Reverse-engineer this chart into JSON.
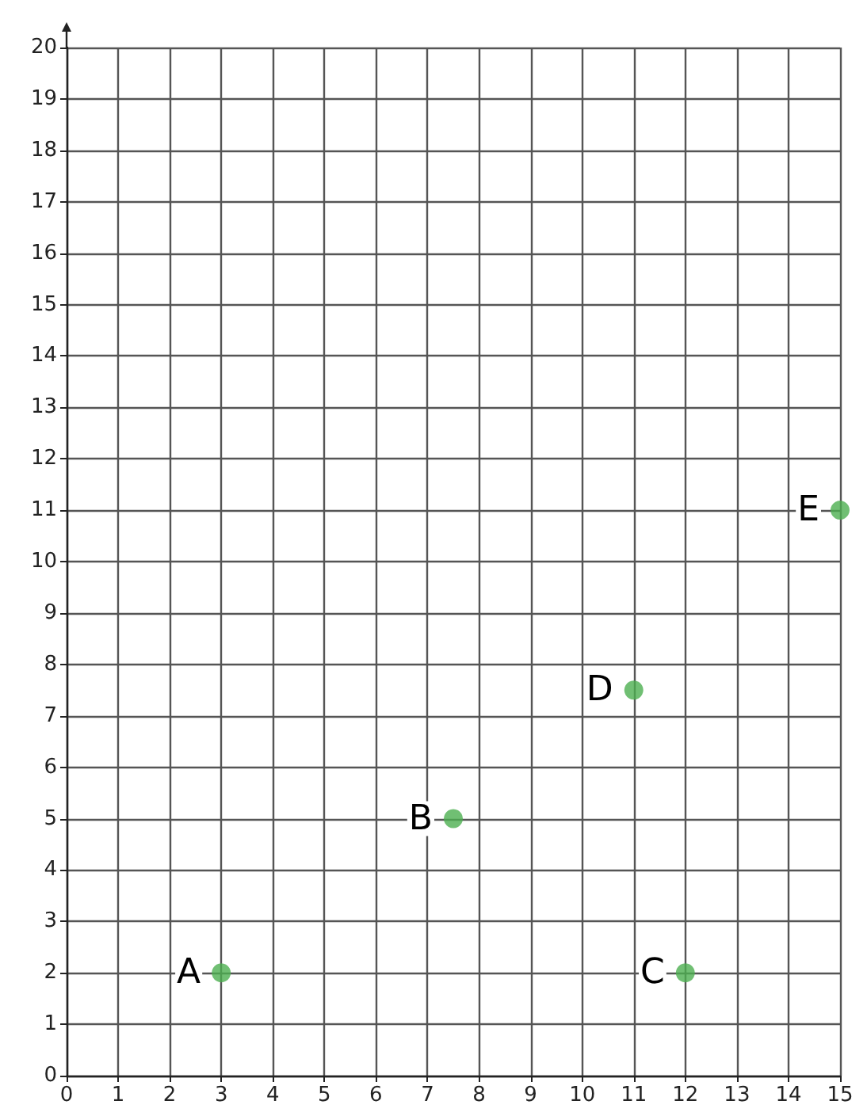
{
  "chart_data": {
    "type": "scatter",
    "x": [
      3,
      7.5,
      12,
      11,
      15
    ],
    "values": [
      2,
      5,
      2,
      7.5,
      11
    ],
    "color": "#4caf50",
    "marker": "circle",
    "xlim": [
      0,
      15
    ],
    "xticks": [
      0,
      1,
      2,
      3,
      4,
      5,
      6,
      7,
      8,
      9,
      10,
      11,
      12,
      13,
      14,
      15
    ],
    "ylim": [
      0,
      20
    ],
    "yticks": [
      0,
      1,
      2,
      3,
      4,
      5,
      6,
      7,
      8,
      9,
      10,
      11,
      12,
      13,
      14,
      15,
      16,
      17,
      18,
      19,
      20
    ],
    "grid": true,
    "annotations": [
      {
        "text": "A",
        "x": 3,
        "y": 2
      },
      {
        "text": "B",
        "x": 7.5,
        "y": 5
      },
      {
        "text": "C",
        "x": 12,
        "y": 2
      },
      {
        "text": "D",
        "x": 11,
        "y": 7.5
      },
      {
        "text": "E",
        "x": 15,
        "y": 11
      }
    ]
  }
}
